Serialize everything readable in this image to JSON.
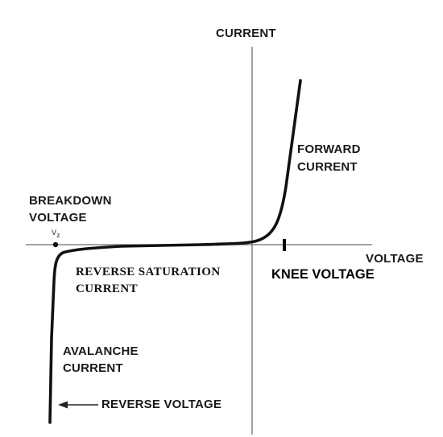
{
  "labels": {
    "current_axis": "CURRENT",
    "voltage_axis": "VOLTAGE",
    "forward_current_line1": "FORWARD",
    "forward_current_line2": "CURRENT",
    "breakdown_voltage_line1": "BREAKDOWN",
    "breakdown_voltage_line2": "VOLTAGE",
    "breakdown_symbol": "V",
    "breakdown_symbol_sub": "z",
    "reverse_saturation_line1": "REVERSE SATURATION",
    "reverse_saturation_line2": "CURRENT",
    "knee_voltage": "KNEE VOLTAGE",
    "avalanche_current_line1": "AVALANCHE",
    "avalanche_current_line2": "CURRENT",
    "reverse_voltage": "REVERSE VOLTAGE"
  },
  "colors": {
    "axis": "#6e6e6e",
    "curve": "#111111",
    "text": "#1a1a1a",
    "background": "#ffffff"
  }
}
